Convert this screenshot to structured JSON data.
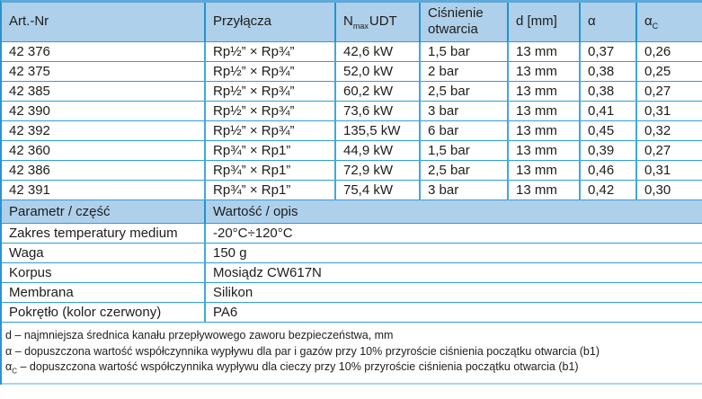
{
  "colors": {
    "header_bg": "#aed0eb",
    "grid_line": "#2f9ed8",
    "column_separator": "#2193d0"
  },
  "spec_table": {
    "headers": {
      "art_nr": "Art.-Nr",
      "przylacza": "Przyłącza",
      "n_symbol": "N",
      "n_sub": "max",
      "n_unit": "UDT",
      "cisnienie": "Ciśnienie otwarcia",
      "d": "d [mm]",
      "alpha": "α",
      "alpha_c_symbol": "α",
      "alpha_c_sub": "C"
    },
    "rows": [
      [
        "42 376",
        "Rp½” × Rp¾”",
        "42,6 kW",
        "1,5 bar",
        "13 mm",
        "0,37",
        "0,26"
      ],
      [
        "42 375",
        "Rp½” × Rp¾”",
        "52,0 kW",
        "2 bar",
        "13 mm",
        "0,38",
        "0,25"
      ],
      [
        "42 385",
        "Rp½” × Rp¾”",
        "60,2 kW",
        "2,5 bar",
        "13 mm",
        "0,38",
        "0,27"
      ],
      [
        "42 390",
        "Rp½” × Rp¾”",
        "73,6 kW",
        "3 bar",
        "13 mm",
        "0,41",
        "0,31"
      ],
      [
        "42 392",
        "Rp½” × Rp¾”",
        "135,5 kW",
        "6 bar",
        "13 mm",
        "0,45",
        "0,32"
      ],
      [
        "42 360",
        "Rp¾” × Rp1”",
        "44,9 kW",
        "1,5 bar",
        "13 mm",
        "0,39",
        "0,27"
      ],
      [
        "42 386",
        "Rp¾” × Rp1”",
        "72,9 kW",
        "2,5 bar",
        "13 mm",
        "0,46",
        "0,31"
      ],
      [
        "42 391",
        "Rp¾” × Rp1”",
        "75,4 kW",
        "3 bar",
        "13 mm",
        "0,42",
        "0,30"
      ]
    ]
  },
  "parameters_table": {
    "headers": [
      "Parametr / część",
      "Wartość / opis"
    ],
    "rows": [
      [
        "Zakres temperatury medium",
        "-20°C÷120°C"
      ],
      [
        "Waga",
        "150 g"
      ],
      [
        "Korpus",
        "Mosiądz CW617N"
      ],
      [
        "Membrana",
        "Silikon"
      ],
      [
        "Pokrętło (kolor czerwony)",
        "PA6"
      ]
    ]
  },
  "footnotes": [
    {
      "symbol": "d",
      "sub": "",
      "text": "– najmniejsza średnica kanału przepływowego zaworu bezpieczeństwa, mm"
    },
    {
      "symbol": "α",
      "sub": "",
      "text": "– dopuszczona wartość współczynnika wypływu dla par i gazów przy 10% przyroście ciśnienia początku otwarcia (b1)"
    },
    {
      "symbol": "α",
      "sub": "C",
      "text": "– dopuszczona wartość współczynnika wypływu dla cieczy przy 10% przyroście ciśnienia początku otwarcia (b1)"
    }
  ]
}
